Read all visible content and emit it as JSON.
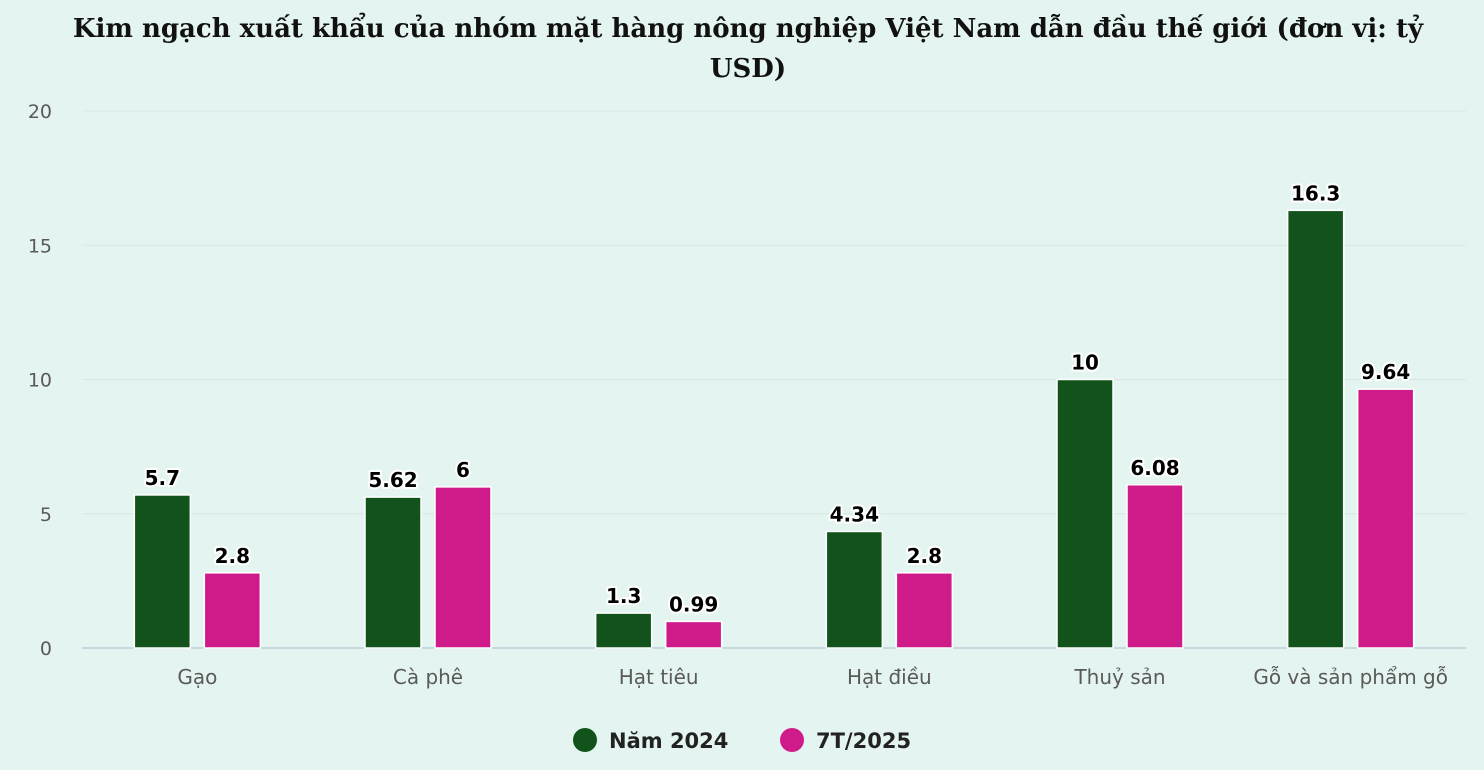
{
  "chart_data": {
    "type": "bar",
    "title_lines": [
      "Kim ngạch xuất khẩu của nhóm mặt hàng nông nghiệp Việt Nam dẫn đầu thế giới (đơn vị: tỷ",
      "USD)"
    ],
    "categories": [
      "Gạo",
      "Cà phê",
      "Hạt tiêu",
      "Hạt điều",
      "Thuỷ sản",
      "Gỗ và sản phẩm gỗ"
    ],
    "series": [
      {
        "name": "Năm 2024",
        "color": "#11531b",
        "values": [
          5.7,
          5.62,
          1.3,
          4.34,
          10,
          16.3
        ],
        "labels": [
          "5.7",
          "5.62",
          "1.3",
          "4.34",
          "10",
          "16.3"
        ]
      },
      {
        "name": "7T/2025",
        "color": "#cf1b8a",
        "values": [
          2.8,
          6,
          0.99,
          2.8,
          6.08,
          9.64
        ],
        "labels": [
          "2.8",
          "6",
          "0.99",
          "2.8",
          "6.08",
          "9.64"
        ]
      }
    ],
    "yticks": [
      "0",
      "5",
      "10",
      "15",
      "20"
    ],
    "ylim": [
      0,
      20
    ],
    "grid": true,
    "legend_position": "bottom-center"
  }
}
